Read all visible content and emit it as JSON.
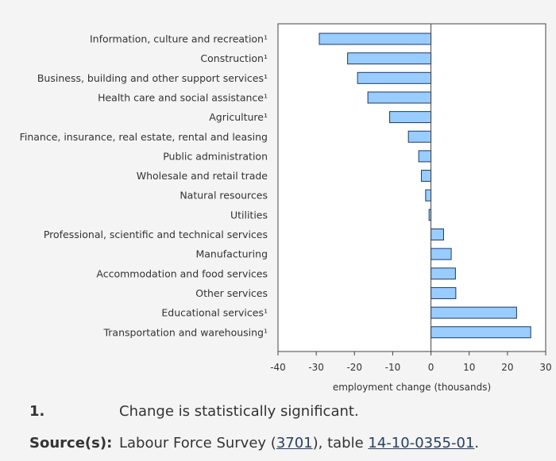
{
  "chart_data": {
    "type": "bar",
    "orientation": "horizontal",
    "title": "",
    "xlabel": "employment change (thousands)",
    "ylabel": "",
    "xlim": [
      -40,
      30
    ],
    "xticks": [
      -40,
      -30,
      -20,
      -10,
      0,
      10,
      20,
      30
    ],
    "grid": false,
    "legend": "none",
    "bar_color": "#99ccff",
    "bar_edge_color": "#1a3a66",
    "categories": [
      "Information, culture and recreation¹",
      "Construction¹",
      "Business, building and other support services¹",
      "Health care and social assistance¹",
      "Agriculture¹",
      "Finance, insurance, real estate, rental and leasing",
      "Public administration",
      "Wholesale and retail trade",
      "Natural resources",
      "Utilities",
      "Professional, scientific and technical services",
      "Manufacturing",
      "Accommodation and food services",
      "Other services",
      "Educational services¹",
      "Transportation and warehousing¹"
    ],
    "values": [
      -29.2,
      -21.8,
      -19.2,
      -16.5,
      -10.8,
      -5.9,
      -3.2,
      -2.5,
      -1.4,
      -0.5,
      3.3,
      5.3,
      6.4,
      6.5,
      22.4,
      26.1
    ]
  },
  "footnotes": {
    "note_number": "1.",
    "note_text": "Change is statistically significant.",
    "source_label": "Source(s):",
    "source_prefix": "Labour Force Survey (",
    "source_survey_link": "3701",
    "source_middle": "), table ",
    "source_table_link": "14-10-0355-01",
    "source_suffix": "."
  }
}
